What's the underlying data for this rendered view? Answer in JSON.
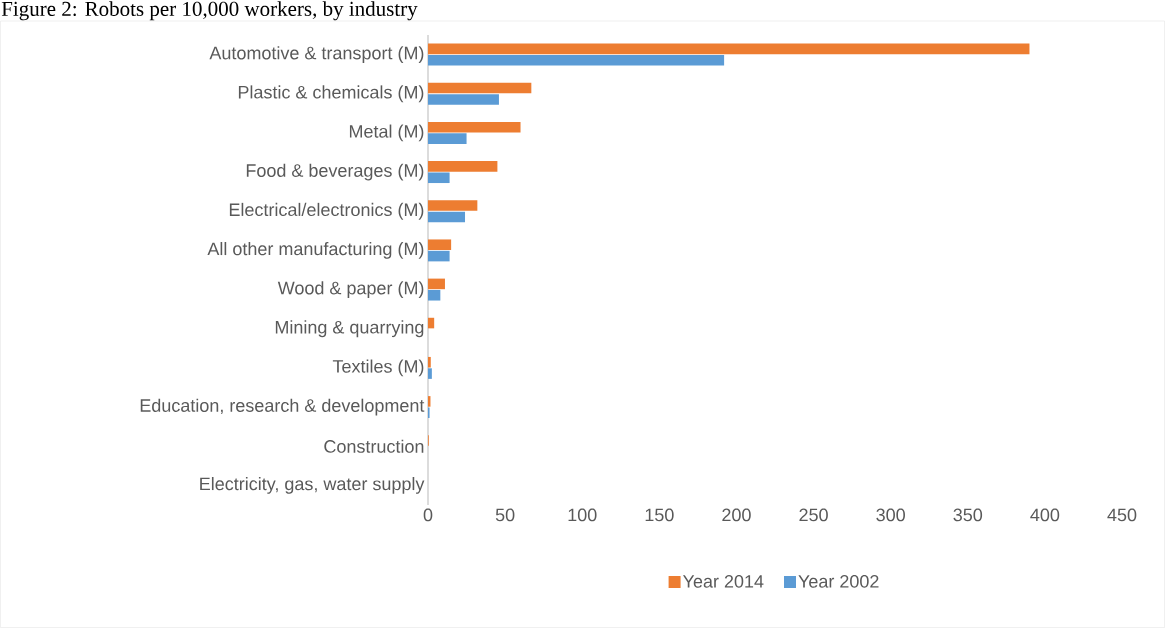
{
  "chart_data": {
    "type": "bar",
    "orientation": "horizontal",
    "title": "Figure 2: Robots per 10,000 workers, by industry",
    "categories": [
      "Automotive & transport (M)",
      "Plastic & chemicals (M)",
      "Metal (M)",
      "Food & beverages (M)",
      "Electrical/electronics (M)",
      "All other manufacturing (M)",
      "Wood & paper (M)",
      "Mining & quarrying",
      "Textiles (M)",
      "Education, research & development",
      "Construction",
      "Electricity, gas, water supply"
    ],
    "series": [
      {
        "name": "Year 2014",
        "color": "#ed7d31",
        "values": [
          390,
          67,
          60,
          45,
          32,
          15,
          11,
          4,
          1.8,
          1.6,
          0.5,
          0
        ]
      },
      {
        "name": "Year 2002",
        "color": "#5b9bd5",
        "values": [
          192,
          46,
          25,
          14,
          24,
          14,
          8,
          0,
          2.5,
          1,
          0,
          0
        ]
      }
    ],
    "xlim": [
      0,
      450
    ],
    "xticks": [
      0,
      50,
      100,
      150,
      200,
      250,
      300,
      350,
      400,
      450
    ],
    "legend": "bottom"
  }
}
